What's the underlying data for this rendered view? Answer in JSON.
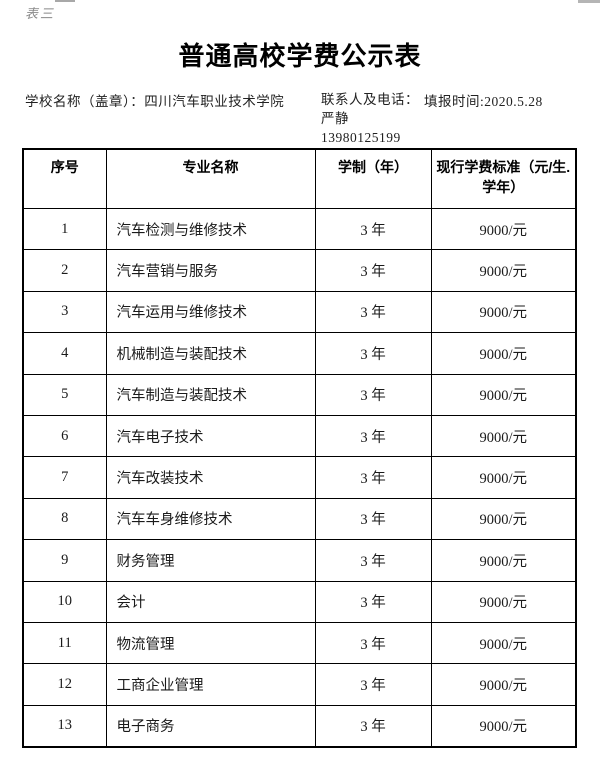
{
  "page": {
    "corner_label": "表三",
    "title": "普通高校学费公示表"
  },
  "meta": {
    "school_label": "学校名称（盖章）：",
    "school_name": "四川汽车职业技术学院",
    "contact_label": "联系人及电话：",
    "contact_name": "严静",
    "contact_phone": "13980125199",
    "report_date_label": "填报时间:",
    "report_date": "2020.5.28"
  },
  "table": {
    "headers": [
      "序号",
      "专业名称",
      "学制（年）",
      "现行学费标准（元/生.学年）"
    ],
    "rows": [
      {
        "no": "1",
        "major": "汽车检测与维修技术",
        "duration": "3 年",
        "fee": "9000/元"
      },
      {
        "no": "2",
        "major": "汽车营销与服务",
        "duration": "3 年",
        "fee": "9000/元"
      },
      {
        "no": "3",
        "major": "汽车运用与维修技术",
        "duration": "3 年",
        "fee": "9000/元"
      },
      {
        "no": "4",
        "major": "机械制造与装配技术",
        "duration": "3 年",
        "fee": "9000/元"
      },
      {
        "no": "5",
        "major": "汽车制造与装配技术",
        "duration": "3 年",
        "fee": "9000/元"
      },
      {
        "no": "6",
        "major": "汽车电子技术",
        "duration": "3 年",
        "fee": "9000/元"
      },
      {
        "no": "7",
        "major": "汽车改装技术",
        "duration": "3 年",
        "fee": "9000/元"
      },
      {
        "no": "8",
        "major": "汽车车身维修技术",
        "duration": "3 年",
        "fee": "9000/元"
      },
      {
        "no": "9",
        "major": "财务管理",
        "duration": "3 年",
        "fee": "9000/元"
      },
      {
        "no": "10",
        "major": "会计",
        "duration": "3 年",
        "fee": "9000/元"
      },
      {
        "no": "11",
        "major": "物流管理",
        "duration": "3 年",
        "fee": "9000/元"
      },
      {
        "no": "12",
        "major": "工商企业管理",
        "duration": "3 年",
        "fee": "9000/元"
      },
      {
        "no": "13",
        "major": "电子商务",
        "duration": "3 年",
        "fee": "9000/元"
      }
    ]
  },
  "colors": {
    "border": "#000000",
    "text": "#1f1f1f",
    "corner_label_text": "#8a8a8a",
    "crop_artifact": "#b5b5b5"
  }
}
